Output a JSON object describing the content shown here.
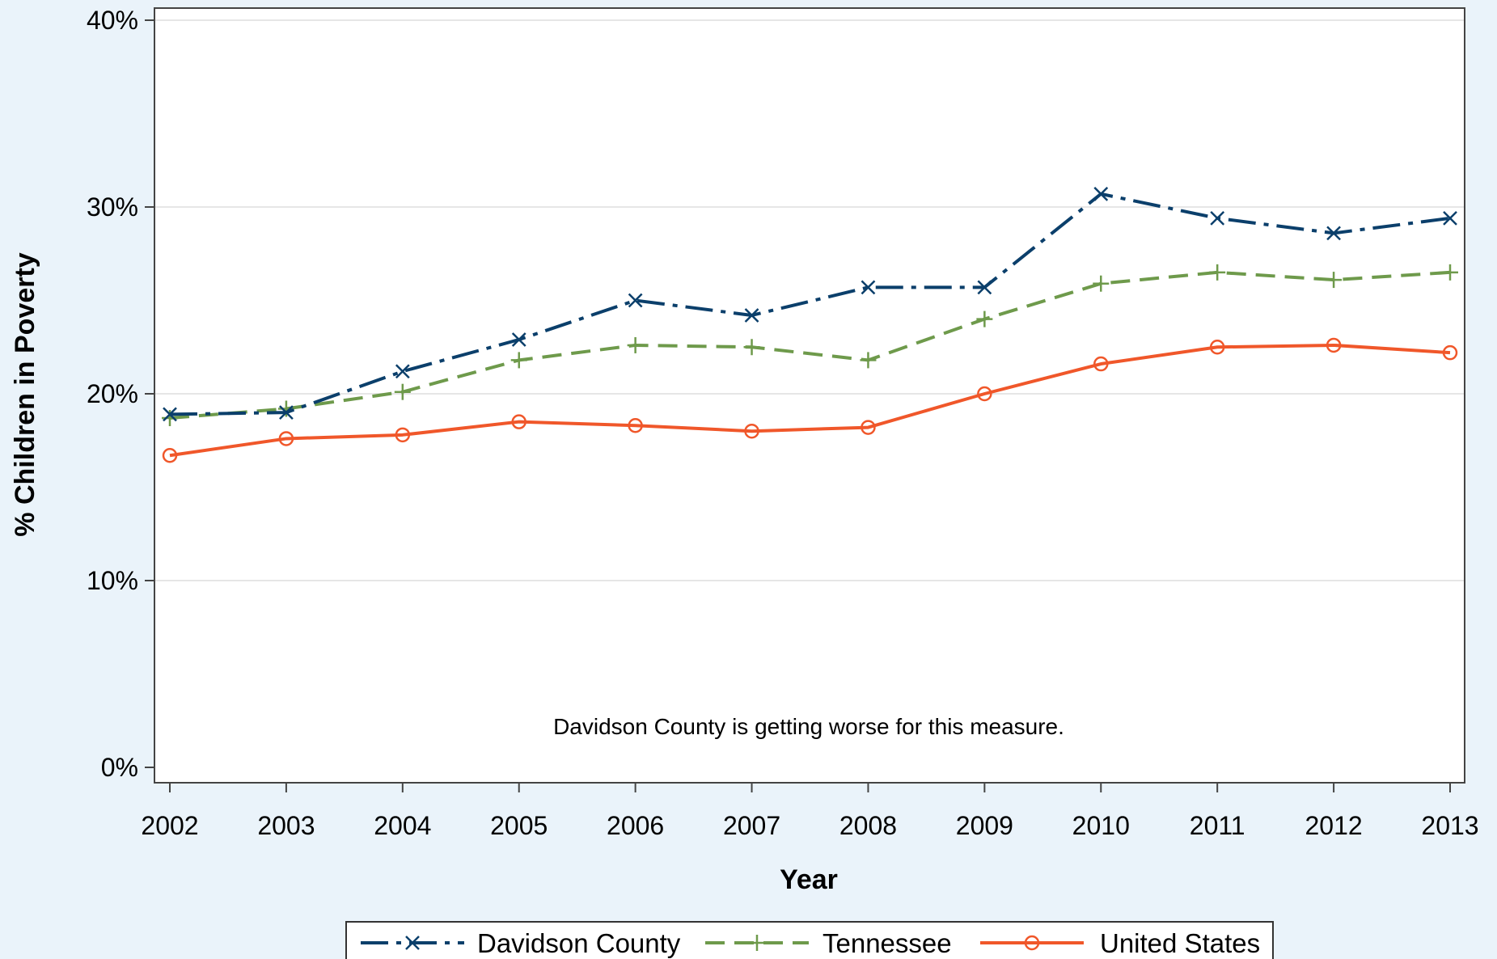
{
  "chart_data": {
    "type": "line",
    "title": "",
    "xlabel": "Year",
    "ylabel": "% Children in Poverty",
    "categories": [
      "2002",
      "2003",
      "2004",
      "2005",
      "2006",
      "2007",
      "2008",
      "2009",
      "2010",
      "2011",
      "2012",
      "2013"
    ],
    "yticks": [
      "0%",
      "10%",
      "20%",
      "30%",
      "40%"
    ],
    "ylim": [
      0,
      40
    ],
    "grid": true,
    "legend_position": "bottom",
    "annotation": "Davidson County is getting worse for this measure.",
    "series": [
      {
        "name": "Davidson County",
        "values": [
          18.9,
          19.0,
          21.2,
          22.9,
          25.0,
          24.2,
          25.7,
          25.7,
          30.7,
          29.4,
          28.6,
          29.4
        ],
        "color": "#0b3f6b",
        "line_style": "dash-dot",
        "marker": "x"
      },
      {
        "name": "Tennessee",
        "values": [
          18.7,
          19.2,
          20.1,
          21.8,
          22.6,
          22.5,
          21.8,
          24.0,
          25.9,
          26.5,
          26.1,
          26.5
        ],
        "color": "#6e9a4b",
        "line_style": "dash",
        "marker": "plus"
      },
      {
        "name": "United States",
        "values": [
          16.7,
          17.6,
          17.8,
          18.5,
          18.3,
          18.0,
          18.2,
          20.0,
          21.6,
          22.5,
          22.6,
          22.2
        ],
        "color": "#f0572a",
        "line_style": "solid",
        "marker": "circle"
      }
    ]
  }
}
